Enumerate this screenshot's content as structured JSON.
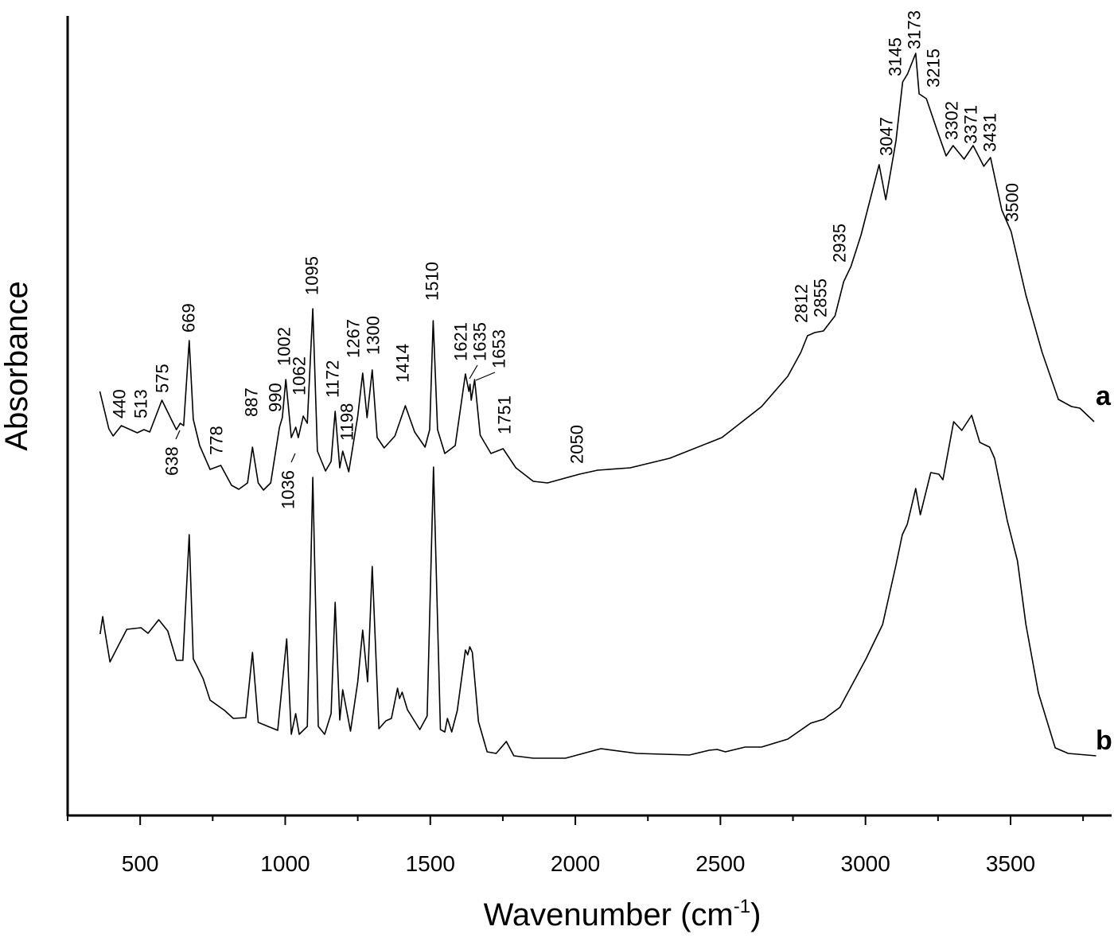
{
  "chart_data": {
    "type": "line",
    "xlabel": "Wavenumber (cm",
    "xlabel_superscript": "-1",
    "xlabel_suffix": ")",
    "ylabel": "Absorbance",
    "xlim": [
      250,
      3850
    ],
    "ylim": [
      0,
      100.5
    ],
    "y_units": "arbitrary (no tick labels shown)",
    "x_ticks": [
      500,
      1000,
      1500,
      2000,
      2500,
      3000,
      3500
    ],
    "x_minor_ticks": [
      250,
      750,
      1250,
      1750,
      2250,
      2750,
      3250,
      3750
    ],
    "grid": false,
    "line_color": "#000000",
    "series": [
      {
        "name": "a",
        "points": [
          [
            361,
            53.3
          ],
          [
            392,
            48.6
          ],
          [
            407,
            47.7
          ],
          [
            435,
            49.0
          ],
          [
            490,
            48.1
          ],
          [
            513,
            48.5
          ],
          [
            533,
            48.2
          ],
          [
            575,
            52.2
          ],
          [
            607,
            49.8
          ],
          [
            625,
            48.5
          ],
          [
            638,
            49.3
          ],
          [
            650,
            49.0
          ],
          [
            669,
            59.7
          ],
          [
            683,
            49.8
          ],
          [
            705,
            46.5
          ],
          [
            741,
            43.5
          ],
          [
            778,
            44.0
          ],
          [
            815,
            41.5
          ],
          [
            840,
            41.0
          ],
          [
            870,
            41.8
          ],
          [
            887,
            46.3
          ],
          [
            907,
            41.8
          ],
          [
            925,
            40.9
          ],
          [
            950,
            41.8
          ],
          [
            980,
            48.8
          ],
          [
            990,
            50.0
          ],
          [
            1002,
            54.8
          ],
          [
            1021,
            47.5
          ],
          [
            1036,
            48.8
          ],
          [
            1045,
            47.5
          ],
          [
            1062,
            50.2
          ],
          [
            1076,
            49.3
          ],
          [
            1095,
            63.7
          ],
          [
            1111,
            45.8
          ],
          [
            1139,
            43.3
          ],
          [
            1158,
            44.5
          ],
          [
            1172,
            50.8
          ],
          [
            1188,
            43.7
          ],
          [
            1198,
            45.8
          ],
          [
            1219,
            43.2
          ],
          [
            1250,
            50.2
          ],
          [
            1267,
            55.6
          ],
          [
            1282,
            50.0
          ],
          [
            1300,
            56.0
          ],
          [
            1317,
            47.5
          ],
          [
            1341,
            46.2
          ],
          [
            1378,
            47.7
          ],
          [
            1414,
            51.5
          ],
          [
            1446,
            48.2
          ],
          [
            1482,
            46.3
          ],
          [
            1498,
            48.5
          ],
          [
            1510,
            62.2
          ],
          [
            1525,
            48.5
          ],
          [
            1550,
            45.5
          ],
          [
            1586,
            46.5
          ],
          [
            1621,
            55.5
          ],
          [
            1633,
            53.3
          ],
          [
            1637,
            54.2
          ],
          [
            1641,
            52.2
          ],
          [
            1653,
            54.8
          ],
          [
            1672,
            47.8
          ],
          [
            1709,
            45.5
          ],
          [
            1751,
            46.1
          ],
          [
            1795,
            43.7
          ],
          [
            1855,
            42.0
          ],
          [
            1904,
            41.8
          ],
          [
            2014,
            42.9
          ],
          [
            2077,
            43.4
          ],
          [
            2189,
            43.7
          ],
          [
            2325,
            44.9
          ],
          [
            2505,
            47.5
          ],
          [
            2642,
            51.4
          ],
          [
            2732,
            55.2
          ],
          [
            2777,
            58.2
          ],
          [
            2800,
            60.3
          ],
          [
            2825,
            60.7
          ],
          [
            2855,
            60.9
          ],
          [
            2895,
            62.8
          ],
          [
            2925,
            67.1
          ],
          [
            2950,
            69.0
          ],
          [
            2985,
            73.0
          ],
          [
            3047,
            81.8
          ],
          [
            3070,
            77.4
          ],
          [
            3105,
            84.8
          ],
          [
            3128,
            92.2
          ],
          [
            3145,
            93.2
          ],
          [
            3173,
            95.8
          ],
          [
            3185,
            90.7
          ],
          [
            3210,
            90.1
          ],
          [
            3248,
            86.0
          ],
          [
            3278,
            82.9
          ],
          [
            3302,
            84.2
          ],
          [
            3340,
            82.5
          ],
          [
            3371,
            84.2
          ],
          [
            3408,
            81.6
          ],
          [
            3431,
            82.7
          ],
          [
            3470,
            76.1
          ],
          [
            3502,
            73.4
          ],
          [
            3553,
            65.4
          ],
          [
            3609,
            58.2
          ],
          [
            3665,
            52.3
          ],
          [
            3710,
            51.4
          ],
          [
            3739,
            51.2
          ],
          [
            3788,
            49.5
          ]
        ]
      },
      {
        "name": "b",
        "points": [
          [
            362,
            22.8
          ],
          [
            371,
            25.0
          ],
          [
            377,
            23.5
          ],
          [
            396,
            19.3
          ],
          [
            417,
            20.8
          ],
          [
            454,
            23.4
          ],
          [
            503,
            23.6
          ],
          [
            527,
            22.9
          ],
          [
            564,
            24.6
          ],
          [
            595,
            23.2
          ],
          [
            625,
            19.5
          ],
          [
            647,
            19.5
          ],
          [
            669,
            35.3
          ],
          [
            683,
            19.7
          ],
          [
            717,
            17.2
          ],
          [
            741,
            14.5
          ],
          [
            791,
            13.2
          ],
          [
            821,
            12.2
          ],
          [
            864,
            12.3
          ],
          [
            887,
            20.5
          ],
          [
            907,
            11.7
          ],
          [
            974,
            10.7
          ],
          [
            1005,
            22.2
          ],
          [
            1021,
            10.2
          ],
          [
            1036,
            12.8
          ],
          [
            1048,
            10.2
          ],
          [
            1076,
            11.2
          ],
          [
            1095,
            42.5
          ],
          [
            1114,
            11.2
          ],
          [
            1136,
            10.2
          ],
          [
            1158,
            12.8
          ],
          [
            1172,
            26.8
          ],
          [
            1188,
            12.0
          ],
          [
            1198,
            15.8
          ],
          [
            1225,
            10.6
          ],
          [
            1250,
            16.8
          ],
          [
            1267,
            23.3
          ],
          [
            1284,
            16.8
          ],
          [
            1300,
            31.3
          ],
          [
            1323,
            10.9
          ],
          [
            1347,
            11.9
          ],
          [
            1366,
            12.2
          ],
          [
            1387,
            16.0
          ],
          [
            1394,
            14.7
          ],
          [
            1403,
            15.5
          ],
          [
            1421,
            13.3
          ],
          [
            1464,
            10.8
          ],
          [
            1489,
            12.5
          ],
          [
            1511,
            43.8
          ],
          [
            1535,
            10.8
          ],
          [
            1550,
            10.5
          ],
          [
            1559,
            12.2
          ],
          [
            1574,
            10.5
          ],
          [
            1593,
            13.2
          ],
          [
            1621,
            20.8
          ],
          [
            1629,
            20.2
          ],
          [
            1636,
            21.2
          ],
          [
            1645,
            20.5
          ],
          [
            1666,
            11.8
          ],
          [
            1696,
            8.0
          ],
          [
            1727,
            7.8
          ],
          [
            1762,
            9.3
          ],
          [
            1788,
            7.5
          ],
          [
            1855,
            7.2
          ],
          [
            1966,
            7.2
          ],
          [
            2088,
            8.4
          ],
          [
            2212,
            7.8
          ],
          [
            2393,
            7.6
          ],
          [
            2461,
            8.2
          ],
          [
            2489,
            8.3
          ],
          [
            2517,
            8.0
          ],
          [
            2585,
            8.6
          ],
          [
            2642,
            8.6
          ],
          [
            2732,
            9.6
          ],
          [
            2811,
            11.6
          ],
          [
            2856,
            12.1
          ],
          [
            2912,
            13.6
          ],
          [
            3002,
            19.7
          ],
          [
            3059,
            24.0
          ],
          [
            3104,
            31.3
          ],
          [
            3127,
            35.3
          ],
          [
            3144,
            36.6
          ],
          [
            3173,
            41.1
          ],
          [
            3189,
            37.8
          ],
          [
            3225,
            43.1
          ],
          [
            3253,
            42.9
          ],
          [
            3267,
            42.2
          ],
          [
            3304,
            49.5
          ],
          [
            3332,
            48.4
          ],
          [
            3366,
            50.3
          ],
          [
            3394,
            46.9
          ],
          [
            3428,
            46.3
          ],
          [
            3445,
            44.9
          ],
          [
            3489,
            37.0
          ],
          [
            3524,
            32.0
          ],
          [
            3553,
            24.0
          ],
          [
            3596,
            15.4
          ],
          [
            3654,
            8.5
          ],
          [
            3699,
            7.8
          ],
          [
            3795,
            7.5
          ]
        ]
      }
    ],
    "annotations": [
      "440",
      "513",
      "575",
      "638",
      "669",
      "778",
      "887",
      "990",
      "1002",
      "1036",
      "1062",
      "1095",
      "1172",
      "1198",
      "1267",
      "1300",
      "1414",
      "1510",
      "1621",
      "1635",
      "1653",
      "1751",
      "2050",
      "2812",
      "2855",
      "2935",
      "3047",
      "3145",
      "3173",
      "3215",
      "3302",
      "3371",
      "3431",
      "3500"
    ]
  }
}
